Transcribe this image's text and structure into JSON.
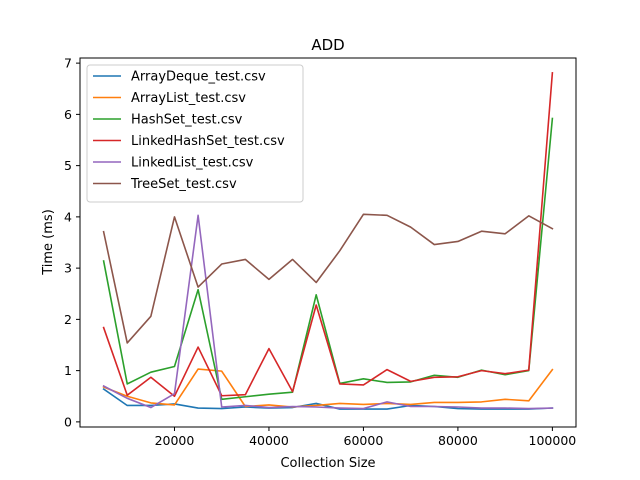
{
  "chart_data": {
    "type": "line",
    "title": "ADD",
    "xlabel": "Collection Size",
    "ylabel": "Time (ms)",
    "xlim": [
      0,
      105000
    ],
    "ylim": [
      -0.1,
      7.1
    ],
    "xticks": [
      20000,
      40000,
      60000,
      80000,
      100000
    ],
    "yticks": [
      0,
      1,
      2,
      3,
      4,
      5,
      6,
      7
    ],
    "grid": false,
    "legend_position": "upper-left",
    "x": [
      5000,
      10000,
      15000,
      20000,
      25000,
      30000,
      35000,
      40000,
      45000,
      50000,
      55000,
      60000,
      65000,
      70000,
      75000,
      80000,
      85000,
      90000,
      95000,
      100000
    ],
    "series": [
      {
        "name": "ArrayDeque_test.csv",
        "color": "#1f77b4",
        "values": [
          0.64,
          0.32,
          0.32,
          0.35,
          0.27,
          0.26,
          0.29,
          0.27,
          0.28,
          0.36,
          0.25,
          0.25,
          0.25,
          0.32,
          0.3,
          0.26,
          0.25,
          0.25,
          0.25,
          0.27
        ]
      },
      {
        "name": "ArrayList_test.csv",
        "color": "#ff7f0e",
        "values": [
          0.68,
          0.5,
          0.37,
          0.33,
          1.03,
          0.99,
          0.3,
          0.33,
          0.29,
          0.32,
          0.36,
          0.34,
          0.36,
          0.34,
          0.38,
          0.38,
          0.39,
          0.44,
          0.41,
          1.02
        ]
      },
      {
        "name": "HashSet_test.csv",
        "color": "#2ca02c",
        "values": [
          3.14,
          0.74,
          0.97,
          1.08,
          2.58,
          0.44,
          0.49,
          0.54,
          0.58,
          2.48,
          0.75,
          0.84,
          0.77,
          0.78,
          0.91,
          0.87,
          1.01,
          0.92,
          1.0,
          5.92
        ]
      },
      {
        "name": "LinkedHashSet_test.csv",
        "color": "#d62728",
        "values": [
          1.84,
          0.52,
          0.87,
          0.5,
          1.46,
          0.51,
          0.53,
          1.43,
          0.59,
          2.28,
          0.74,
          0.72,
          1.02,
          0.79,
          0.87,
          0.88,
          1.0,
          0.94,
          1.01,
          6.81
        ]
      },
      {
        "name": "LinkedList_test.csv",
        "color": "#9467bd",
        "values": [
          0.7,
          0.46,
          0.28,
          0.55,
          4.03,
          0.29,
          0.32,
          0.28,
          0.3,
          0.29,
          0.27,
          0.26,
          0.39,
          0.3,
          0.3,
          0.29,
          0.27,
          0.27,
          0.26,
          0.27
        ]
      },
      {
        "name": "TreeSet_test.csv",
        "color": "#8c564b",
        "values": [
          3.71,
          1.54,
          2.06,
          4.0,
          2.63,
          3.08,
          3.17,
          2.78,
          3.17,
          2.72,
          3.34,
          4.05,
          4.03,
          3.8,
          3.46,
          3.52,
          3.72,
          3.67,
          4.02,
          3.77
        ]
      }
    ]
  }
}
